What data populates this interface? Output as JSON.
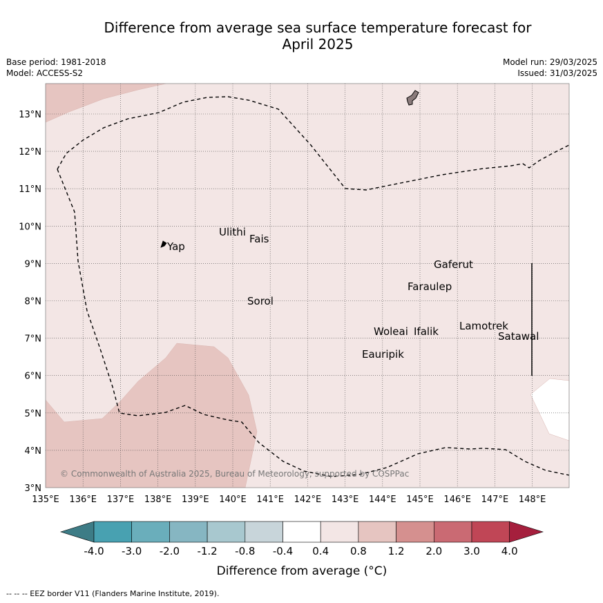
{
  "title_line1": "Difference from average sea surface temperature forecast for",
  "title_line2": "April 2025",
  "meta": {
    "base_period": "Base period: 1981-2018",
    "model": "Model: ACCESS-S2",
    "model_run": "Model run: 29/03/2025",
    "issued": "Issued: 31/03/2025"
  },
  "map": {
    "lon_ticks": [
      "135°E",
      "136°E",
      "137°E",
      "138°E",
      "139°E",
      "140°E",
      "141°E",
      "142°E",
      "143°E",
      "144°E",
      "145°E",
      "146°E",
      "147°E",
      "148°E"
    ],
    "lat_ticks": [
      "3°N",
      "4°N",
      "5°N",
      "6°N",
      "7°N",
      "8°N",
      "9°N",
      "10°N",
      "11°N",
      "12°N",
      "13°N"
    ],
    "islands": [
      "Yap",
      "Ulithi",
      "Fais",
      "Sorol",
      "Gaferut",
      "Faraulep",
      "Woleai",
      "Ifalik",
      "Lamotrek",
      "Satawal",
      "Eauripik"
    ],
    "copyright": "© Commonwealth of Australia 2025, Bureau of Meteorology, supported by COSPPac",
    "background_color": "#f3e6e5",
    "warm_anomaly_color": "#e6c5c1"
  },
  "colorbar": {
    "labels": [
      "-4.0",
      "-3.0",
      "-2.0",
      "-1.2",
      "-0.8",
      "-0.4",
      "0.4",
      "0.8",
      "1.2",
      "2.0",
      "3.0",
      "4.0"
    ],
    "colors": [
      "#3d7c86",
      "#48a1b1",
      "#6aaebb",
      "#86b6c2",
      "#a8c8cf",
      "#c8d5da",
      "#ffffff",
      "#f3e6e5",
      "#e6c5c1",
      "#d5908f",
      "#ca6a73",
      "#c04656",
      "#a51f3d"
    ],
    "title": "Difference from average (°C)"
  },
  "footnote": "--  --  -- EEZ border V11 (Flanders Marine Institute, 2019)."
}
